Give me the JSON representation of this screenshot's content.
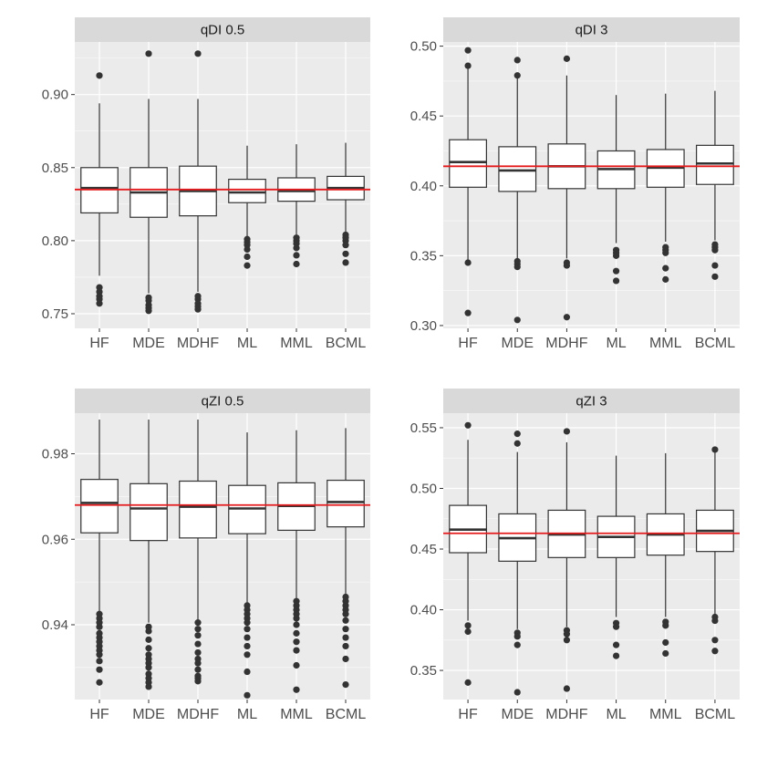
{
  "colors": {
    "panel_bg": "#ebebeb",
    "strip_bg": "#d9d9d9",
    "grid_major": "#ffffff",
    "box_fill": "#ffffff",
    "box_line": "#333333",
    "outlier": "#333333",
    "reference_line": "#e41a1c",
    "axis_text": "#4d4d4d"
  },
  "chart_data": [
    {
      "type": "boxplot",
      "title": "qDI 0.5",
      "categories": [
        "HF",
        "MDE",
        "MDHF",
        "ML",
        "MML",
        "BCML"
      ],
      "ylim": [
        0.74,
        0.936
      ],
      "yticks": [
        0.75,
        0.8,
        0.85,
        0.9
      ],
      "ytick_labels": [
        "0.75",
        "0.80",
        "0.85",
        "0.90"
      ],
      "reference_value": 0.835,
      "boxes": [
        {
          "q1": 0.819,
          "median": 0.836,
          "q3": 0.85,
          "whisker_low": 0.776,
          "whisker_high": 0.894,
          "outliers": [
            0.913,
            0.768,
            0.765,
            0.762,
            0.76,
            0.757
          ]
        },
        {
          "q1": 0.816,
          "median": 0.833,
          "q3": 0.85,
          "whisker_low": 0.764,
          "whisker_high": 0.897,
          "outliers": [
            0.928,
            0.761,
            0.759,
            0.756,
            0.754,
            0.752
          ]
        },
        {
          "q1": 0.817,
          "median": 0.834,
          "q3": 0.851,
          "whisker_low": 0.765,
          "whisker_high": 0.897,
          "outliers": [
            0.928,
            0.762,
            0.76,
            0.757,
            0.755,
            0.753
          ]
        },
        {
          "q1": 0.826,
          "median": 0.833,
          "q3": 0.842,
          "whisker_low": 0.803,
          "whisker_high": 0.865,
          "outliers": [
            0.801,
            0.799,
            0.797,
            0.794,
            0.789,
            0.783
          ]
        },
        {
          "q1": 0.827,
          "median": 0.834,
          "q3": 0.843,
          "whisker_low": 0.804,
          "whisker_high": 0.866,
          "outliers": [
            0.802,
            0.8,
            0.798,
            0.795,
            0.79,
            0.784
          ]
        },
        {
          "q1": 0.828,
          "median": 0.836,
          "q3": 0.844,
          "whisker_low": 0.806,
          "whisker_high": 0.867,
          "outliers": [
            0.804,
            0.802,
            0.8,
            0.797,
            0.791,
            0.785
          ]
        }
      ]
    },
    {
      "type": "boxplot",
      "title": "qDI 3",
      "categories": [
        "HF",
        "MDE",
        "MDHF",
        "ML",
        "MML",
        "BCML"
      ],
      "ylim": [
        0.298,
        0.503
      ],
      "yticks": [
        0.3,
        0.35,
        0.4,
        0.45,
        0.5
      ],
      "ytick_labels": [
        "0.30",
        "0.35",
        "0.40",
        "0.45",
        "0.50"
      ],
      "reference_value": 0.414,
      "boxes": [
        {
          "q1": 0.399,
          "median": 0.417,
          "q3": 0.433,
          "whisker_low": 0.347,
          "whisker_high": 0.484,
          "outliers": [
            0.497,
            0.486,
            0.345,
            0.309
          ]
        },
        {
          "q1": 0.396,
          "median": 0.411,
          "q3": 0.428,
          "whisker_low": 0.348,
          "whisker_high": 0.479,
          "outliers": [
            0.49,
            0.479,
            0.346,
            0.344,
            0.342,
            0.304
          ]
        },
        {
          "q1": 0.398,
          "median": 0.414,
          "q3": 0.43,
          "whisker_low": 0.348,
          "whisker_high": 0.479,
          "outliers": [
            0.491,
            0.345,
            0.343,
            0.306
          ]
        },
        {
          "q1": 0.398,
          "median": 0.412,
          "q3": 0.425,
          "whisker_low": 0.359,
          "whisker_high": 0.465,
          "outliers": [
            0.354,
            0.352,
            0.35,
            0.339,
            0.332
          ]
        },
        {
          "q1": 0.399,
          "median": 0.413,
          "q3": 0.426,
          "whisker_low": 0.36,
          "whisker_high": 0.466,
          "outliers": [
            0.356,
            0.354,
            0.352,
            0.341,
            0.333
          ]
        },
        {
          "q1": 0.401,
          "median": 0.416,
          "q3": 0.429,
          "whisker_low": 0.361,
          "whisker_high": 0.468,
          "outliers": [
            0.358,
            0.356,
            0.354,
            0.343,
            0.335
          ]
        }
      ]
    },
    {
      "type": "boxplot",
      "title": "qZI 0.5",
      "categories": [
        "HF",
        "MDE",
        "MDHF",
        "ML",
        "MML",
        "BCML"
      ],
      "ylim": [
        0.9225,
        0.9895
      ],
      "yticks": [
        0.94,
        0.96,
        0.98
      ],
      "ytick_labels": [
        "0.94",
        "0.96",
        "0.98"
      ],
      "reference_value": 0.968,
      "boxes": [
        {
          "q1": 0.9615,
          "median": 0.9685,
          "q3": 0.974,
          "whisker_low": 0.943,
          "whisker_high": 0.988,
          "outliers": [
            0.9425,
            0.9415,
            0.9405,
            0.9395,
            0.938,
            0.937,
            0.936,
            0.935,
            0.934,
            0.933,
            0.9315,
            0.9295,
            0.9265
          ]
        },
        {
          "q1": 0.9597,
          "median": 0.9672,
          "q3": 0.973,
          "whisker_low": 0.9405,
          "whisker_high": 0.988,
          "outliers": [
            0.9395,
            0.9385,
            0.9365,
            0.9345,
            0.933,
            0.932,
            0.931,
            0.93,
            0.9285,
            0.9275,
            0.9265,
            0.9255
          ]
        },
        {
          "q1": 0.9603,
          "median": 0.9676,
          "q3": 0.9736,
          "whisker_low": 0.941,
          "whisker_high": 0.988,
          "outliers": [
            0.9405,
            0.939,
            0.9375,
            0.9355,
            0.9335,
            0.932,
            0.931,
            0.9295,
            0.928,
            0.9275,
            0.9268
          ]
        },
        {
          "q1": 0.9613,
          "median": 0.9672,
          "q3": 0.9726,
          "whisker_low": 0.945,
          "whisker_high": 0.985,
          "outliers": [
            0.9445,
            0.9435,
            0.9425,
            0.9415,
            0.9405,
            0.939,
            0.937,
            0.935,
            0.933,
            0.929,
            0.9235
          ]
        },
        {
          "q1": 0.9621,
          "median": 0.9678,
          "q3": 0.9732,
          "whisker_low": 0.946,
          "whisker_high": 0.9855,
          "outliers": [
            0.9455,
            0.9445,
            0.9435,
            0.9425,
            0.9415,
            0.94,
            0.938,
            0.936,
            0.934,
            0.9305,
            0.9248
          ]
        },
        {
          "q1": 0.9629,
          "median": 0.9687,
          "q3": 0.9738,
          "whisker_low": 0.947,
          "whisker_high": 0.986,
          "outliers": [
            0.9465,
            0.9455,
            0.9445,
            0.9435,
            0.9425,
            0.941,
            0.939,
            0.937,
            0.935,
            0.932,
            0.926
          ]
        }
      ]
    },
    {
      "type": "boxplot",
      "title": "qZI 3",
      "categories": [
        "HF",
        "MDE",
        "MDHF",
        "ML",
        "MML",
        "BCML"
      ],
      "ylim": [
        0.326,
        0.562
      ],
      "yticks": [
        0.35,
        0.4,
        0.45,
        0.5,
        0.55
      ],
      "ytick_labels": [
        "0.35",
        "0.40",
        "0.45",
        "0.50",
        "0.55"
      ],
      "reference_value": 0.463,
      "boxes": [
        {
          "q1": 0.447,
          "median": 0.466,
          "q3": 0.486,
          "whisker_low": 0.391,
          "whisker_high": 0.54,
          "outliers": [
            0.552,
            0.387,
            0.382,
            0.34
          ]
        },
        {
          "q1": 0.44,
          "median": 0.459,
          "q3": 0.479,
          "whisker_low": 0.384,
          "whisker_high": 0.53,
          "outliers": [
            0.545,
            0.537,
            0.381,
            0.378,
            0.371,
            0.332
          ]
        },
        {
          "q1": 0.443,
          "median": 0.462,
          "q3": 0.482,
          "whisker_low": 0.386,
          "whisker_high": 0.538,
          "outliers": [
            0.547,
            0.383,
            0.38,
            0.375,
            0.335
          ]
        },
        {
          "q1": 0.443,
          "median": 0.46,
          "q3": 0.477,
          "whisker_low": 0.394,
          "whisker_high": 0.527,
          "outliers": [
            0.389,
            0.386,
            0.371,
            0.362
          ]
        },
        {
          "q1": 0.445,
          "median": 0.462,
          "q3": 0.479,
          "whisker_low": 0.394,
          "whisker_high": 0.529,
          "outliers": [
            0.39,
            0.387,
            0.373,
            0.364
          ]
        },
        {
          "q1": 0.448,
          "median": 0.465,
          "q3": 0.482,
          "whisker_low": 0.396,
          "whisker_high": 0.532,
          "outliers": [
            0.532,
            0.394,
            0.391,
            0.375,
            0.366
          ]
        }
      ]
    }
  ]
}
